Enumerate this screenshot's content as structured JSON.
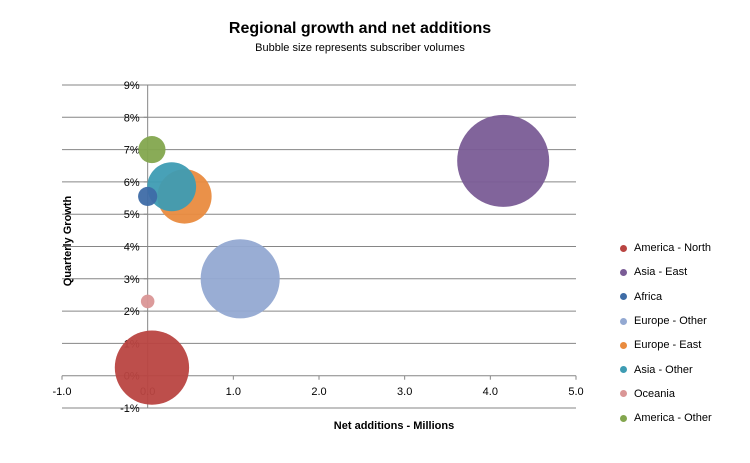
{
  "chart_data": {
    "type": "bubble",
    "title": "Regional growth and net additions",
    "subtitle": "Bubble size represents subscriber volumes",
    "xlabel": "Net additions  - Millions",
    "ylabel": "Quarterly Growth",
    "xlim": [
      -1.0,
      5.0
    ],
    "ylim": [
      -1,
      9
    ],
    "x_ticks": [
      "-1.0",
      "0.0",
      "1.0",
      "2.0",
      "3.0",
      "4.0",
      "5.0"
    ],
    "y_ticks": [
      "-1%",
      "0%",
      "1%",
      "2%",
      "3%",
      "4%",
      "5%",
      "6%",
      "7%",
      "8%",
      "9%"
    ],
    "grid": true,
    "legend_position": "right",
    "series": [
      {
        "name": "America - North",
        "x": 0.05,
        "y": 0.25,
        "size": 30,
        "color": "#B94441"
      },
      {
        "name": "Asia - East",
        "x": 4.15,
        "y": 6.65,
        "size": 46,
        "color": "#7A5C96"
      },
      {
        "name": "Africa",
        "x": 0.0,
        "y": 5.55,
        "size": 2,
        "color": "#3E6CA6"
      },
      {
        "name": "Europe - Other",
        "x": 1.08,
        "y": 3.0,
        "size": 34,
        "color": "#93A9D2"
      },
      {
        "name": "Europe - East",
        "x": 0.43,
        "y": 5.55,
        "size": 16,
        "color": "#E98B3F"
      },
      {
        "name": "Asia - Other",
        "x": 0.28,
        "y": 5.85,
        "size": 13,
        "color": "#3E9CB3"
      },
      {
        "name": "Oceania",
        "x": 0.0,
        "y": 2.3,
        "size": 1,
        "color": "#DA9696"
      },
      {
        "name": "America - Other",
        "x": 0.05,
        "y": 7.0,
        "size": 4,
        "color": "#83A64E"
      }
    ]
  }
}
